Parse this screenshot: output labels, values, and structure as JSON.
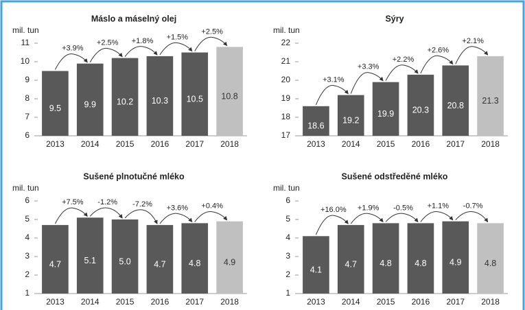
{
  "chart_data": [
    {
      "type": "bar",
      "title": "Máslo a máselný olej",
      "y_label": "mil. tun",
      "categories": [
        "2013",
        "2014",
        "2015",
        "2016",
        "2017",
        "2018"
      ],
      "values": [
        9.5,
        9.9,
        10.2,
        10.3,
        10.5,
        10.8
      ],
      "colors": [
        "#595959",
        "#595959",
        "#595959",
        "#595959",
        "#595959",
        "#c0c0c0"
      ],
      "annotations": [
        "+3.9%",
        "+2.5%",
        "+1.8%",
        "+1.5%",
        "+2.5%"
      ],
      "ylim": [
        6,
        11
      ],
      "yticks": [
        6,
        7,
        8,
        9,
        10,
        11
      ]
    },
    {
      "type": "bar",
      "title": "Sýry",
      "y_label": "mil. tun",
      "categories": [
        "2013",
        "2014",
        "2015",
        "2016",
        "2017",
        "2018"
      ],
      "values": [
        18.6,
        19.2,
        19.9,
        20.3,
        20.8,
        21.3
      ],
      "colors": [
        "#595959",
        "#595959",
        "#595959",
        "#595959",
        "#595959",
        "#c0c0c0"
      ],
      "annotations": [
        "+3.1%",
        "+3.3%",
        "+2.2%",
        "+2.6%",
        "+2.1%"
      ],
      "ylim": [
        17,
        22
      ],
      "yticks": [
        17,
        18,
        19,
        20,
        21,
        22
      ]
    },
    {
      "type": "bar",
      "title": "Sušené plnotučné mléko",
      "y_label": "mil. tun",
      "categories": [
        "2013",
        "2014",
        "2015",
        "2016",
        "2017",
        "2018"
      ],
      "values": [
        4.7,
        5.1,
        5.0,
        4.7,
        4.8,
        4.9
      ],
      "value_labels": [
        "4.7",
        "5.1",
        "5.0",
        "4.7",
        "4.8",
        "4.9"
      ],
      "colors": [
        "#595959",
        "#595959",
        "#595959",
        "#595959",
        "#595959",
        "#c0c0c0"
      ],
      "annotations": [
        "+7.5%",
        "-1.2%",
        "-7.2%",
        "+3.6%",
        "+0.4%"
      ],
      "ylim": [
        1,
        6
      ],
      "yticks": [
        1,
        2,
        3,
        4,
        5,
        6
      ]
    },
    {
      "type": "bar",
      "title": "Sušené odstředěné mléko",
      "y_label": "mil. tun",
      "categories": [
        "2013",
        "2014",
        "2015",
        "2016",
        "2017",
        "2018"
      ],
      "values": [
        4.1,
        4.7,
        4.8,
        4.8,
        4.9,
        4.8
      ],
      "colors": [
        "#595959",
        "#595959",
        "#595959",
        "#595959",
        "#595959",
        "#c0c0c0"
      ],
      "annotations": [
        "+16.0%",
        "+1.9%",
        "-0.5%",
        "+1.1%",
        "-0.7%"
      ],
      "ylim": [
        1,
        6
      ],
      "yticks": [
        1,
        2,
        3,
        4,
        5,
        6
      ]
    }
  ]
}
